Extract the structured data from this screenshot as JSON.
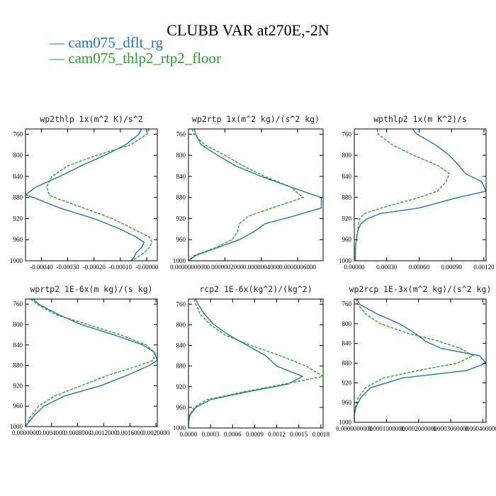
{
  "figure": {
    "title": "CLUBB VAR at270E,-2N",
    "legend": [
      {
        "label": "cam075_dflt_rg",
        "color": "#1f77b4",
        "style": "solid"
      },
      {
        "label": "cam075_thlp2_rtp2_floor",
        "color": "#2ca02c",
        "style": "dashed"
      }
    ]
  },
  "chart_data": [
    {
      "type": "line",
      "title": "wp2thlp  1x(m^2 K)/s^2",
      "ylim": [
        1000,
        750
      ],
      "y_ticks": [
        "760",
        "800",
        "840",
        "880",
        "920",
        "960",
        "1000"
      ],
      "xlim": [
        -0.00046,
        4e-05
      ],
      "x_ticks": [
        -0.0004,
        -0.0003,
        -0.0002,
        -0.0001,
        0.0
      ],
      "x_tick_labels": [
        "-0.00040",
        "-0.00030",
        "-0.00020",
        "-0.00010",
        "-0.00000"
      ],
      "y": [
        750,
        760,
        780,
        800,
        820,
        840,
        860,
        875,
        880,
        900,
        920,
        940,
        955,
        965,
        975,
        985,
        995,
        1000
      ],
      "series": [
        {
          "name": "cam075_dflt_rg",
          "color": "#1f77b4",
          "dash": "",
          "x": [
            -2e-05,
            -3e-05,
            -8e-05,
            -0.00016,
            -0.00025,
            -0.00033,
            -0.00042,
            -0.00046,
            -0.00043,
            -0.00033,
            -0.0002,
            -0.0001,
            -4e-05,
            -1e-05,
            -2e-05,
            -4e-05,
            -5e-05,
            -6e-05
          ]
        },
        {
          "name": "cam075_thlp2_rtp2_floor",
          "color": "#2ca02c",
          "dash": "4,2",
          "x": [
            1e-05,
            0.0,
            -6e-05,
            -0.00019,
            -0.0003,
            -0.00036,
            -0.00038,
            -0.00037,
            -0.00035,
            -0.00024,
            -0.00013,
            -5e-05,
            1e-05,
            2e-05,
            1e-05,
            -1e-05,
            -4e-05,
            -6e-05
          ]
        }
      ]
    },
    {
      "type": "line",
      "title": "wp2rtp  1x(m^2 kg)/(s^2 kg)",
      "ylim": [
        1000,
        750
      ],
      "y_ticks": [
        "760",
        "800",
        "840",
        "880",
        "920",
        "960",
        "1000"
      ],
      "xlim": [
        0.0,
        7.4e-07
      ],
      "x_ticks": [
        0.0,
        2e-07,
        4e-07,
        6e-07
      ],
      "x_tick_labels": [
        "0.0000000000",
        "0.0000002000",
        "0.0000004000",
        "0.0000006000"
      ],
      "y": [
        750,
        760,
        780,
        800,
        820,
        840,
        860,
        880,
        900,
        915,
        930,
        945,
        960,
        975,
        990,
        1000
      ],
      "series": [
        {
          "name": "cam075_dflt_rg",
          "color": "#1f77b4",
          "dash": "",
          "x": [
            3.2e-08,
            4e-08,
            7e-08,
            1.6e-07,
            2.6e-07,
            4e-07,
            5.6e-07,
            7.3e-07,
            7.3e-07,
            5.8e-07,
            4.2e-07,
            3.6e-07,
            2.8e-07,
            1.6e-07,
            4e-08,
            0.0
          ]
        },
        {
          "name": "cam075_thlp2_rtp2_floor",
          "color": "#2ca02c",
          "dash": "4,2",
          "x": [
            2e-08,
            3e-08,
            9e-08,
            2e-07,
            3e-07,
            4.2e-07,
            5.6e-07,
            6.3e-07,
            4.6e-07,
            3.3e-07,
            2.8e-07,
            2.7e-07,
            2.4e-07,
            1.5e-07,
            3e-08,
            0.0
          ]
        }
      ]
    },
    {
      "type": "line",
      "title": "wpthlp2  1x(m K^2)/s",
      "ylim": [
        1000,
        750
      ],
      "y_ticks": [
        "760",
        "800",
        "840",
        "880",
        "920",
        "960",
        "1000"
      ],
      "xlim": [
        0.0,
        0.00122
      ],
      "x_ticks": [
        0.0,
        0.0003,
        0.0006,
        0.0009,
        0.0012
      ],
      "x_tick_labels": [
        "0.00000",
        "0.00030",
        "0.00060",
        "0.00090",
        "0.00120"
      ],
      "y": [
        750,
        760,
        780,
        800,
        820,
        835,
        850,
        868,
        880,
        900,
        910,
        920,
        930,
        945,
        960,
        975,
        990,
        1000
      ],
      "series": [
        {
          "name": "cam075_dflt_rg",
          "color": "#1f77b4",
          "dash": "",
          "x": [
            0.00054,
            0.00058,
            0.00075,
            0.00088,
            0.00097,
            0.00103,
            0.00118,
            0.00122,
            0.00096,
            0.0006,
            0.00025,
            0.00012,
            6e-05,
            3e-05,
            2e-05,
            1e-05,
            1e-05,
            1e-05
          ]
        },
        {
          "name": "cam075_thlp2_rtp2_floor",
          "color": "#2ca02c",
          "dash": "4,2",
          "x": [
            0.00021,
            0.00022,
            0.00035,
            0.00055,
            0.00078,
            0.00088,
            0.00085,
            0.00077,
            0.0006,
            0.00025,
            0.0001,
            5e-05,
            4e-05,
            3e-05,
            2e-05,
            1e-05,
            1e-05,
            1e-05
          ]
        }
      ]
    },
    {
      "type": "line",
      "title": "wprtp2  1E-6x(m kg)/(s kg)",
      "ylim": [
        1000,
        750
      ],
      "y_ticks": [
        "760",
        "800",
        "840",
        "880",
        "920",
        "960",
        "1000"
      ],
      "xlim": [
        0.0,
        0.00202
      ],
      "x_ticks": [
        0.0,
        0.0004,
        0.0008,
        0.0012,
        0.0016,
        0.002
      ],
      "x_tick_labels": [
        "0.0000000",
        "0.0004000",
        "0.0008000",
        "0.0012000",
        "0.0016000",
        "0.0020000"
      ],
      "y": [
        750,
        760,
        780,
        800,
        820,
        840,
        855,
        870,
        880,
        900,
        920,
        940,
        960,
        980,
        1000
      ],
      "series": [
        {
          "name": "cam075_dflt_rg",
          "color": "#1f77b4",
          "dash": "",
          "x": [
            0.00012,
            0.0002,
            0.0005,
            0.00085,
            0.00135,
            0.0018,
            0.00198,
            0.00202,
            0.0019,
            0.00155,
            0.00115,
            0.0006,
            0.00028,
            0.00012,
            0.0
          ]
        },
        {
          "name": "cam075_thlp2_rtp2_floor",
          "color": "#2ca02c",
          "dash": "4,2",
          "x": [
            8e-05,
            0.00018,
            0.00045,
            0.00095,
            0.00145,
            0.00185,
            0.00198,
            0.00196,
            0.00175,
            0.00125,
            0.00085,
            0.00045,
            0.0002,
            8e-05,
            0.0
          ]
        }
      ]
    },
    {
      "type": "line",
      "title": "rcp2  1E-6x(kg^2)/(kg^2)",
      "ylim": [
        1000,
        750
      ],
      "y_ticks": [
        "760",
        "800",
        "840",
        "880",
        "920",
        "960",
        "1000"
      ],
      "xlim": [
        0.0,
        0.00183
      ],
      "x_ticks": [
        0.0,
        0.0003,
        0.0006,
        0.0009,
        0.0012,
        0.0015,
        0.0018
      ],
      "x_tick_labels": [
        "0.0000",
        "0.0003",
        "0.0006",
        "0.0009",
        "0.0012",
        "0.0015",
        "0.0018"
      ],
      "y": [
        750,
        760,
        780,
        800,
        820,
        840,
        860,
        880,
        900,
        915,
        930,
        945,
        960,
        975,
        990,
        1000
      ],
      "series": [
        {
          "name": "cam075_dflt_rg",
          "color": "#1f77b4",
          "dash": "",
          "x": [
            0.0001,
            0.00013,
            0.00022,
            0.00035,
            0.00055,
            0.0008,
            0.00105,
            0.0012,
            0.00155,
            0.00135,
            0.0008,
            0.0003,
            0.0001,
            2e-05,
            0.0,
            0.0
          ]
        },
        {
          "name": "cam075_thlp2_rtp2_floor",
          "color": "#2ca02c",
          "dash": "4,2",
          "x": [
            8e-05,
            0.0001,
            0.00016,
            0.0003,
            0.0005,
            0.00085,
            0.00125,
            0.0016,
            0.00183,
            0.0013,
            0.00075,
            0.00025,
            8e-05,
            1e-05,
            0.0,
            0.0
          ]
        }
      ]
    },
    {
      "type": "line",
      "title": "wp2rcp  1E-3x(m^2 kg)/(s^2 kg)",
      "ylim": [
        1000,
        750
      ],
      "y_ticks": [
        "760",
        "800",
        "840",
        "880",
        "920",
        "960",
        "1000"
      ],
      "xlim": [
        0.0,
        0.00041
      ],
      "x_ticks": [
        0.0,
        0.0001,
        0.0002,
        0.0003,
        0.0004
      ],
      "x_tick_labels": [
        "0.0000000000",
        "0.0001000000",
        "0.0002000000",
        "0.0003000000",
        "0.0004000000"
      ],
      "y": [
        750,
        760,
        780,
        800,
        820,
        835,
        850,
        865,
        880,
        895,
        910,
        930,
        950,
        970,
        985,
        1000
      ],
      "series": [
        {
          "name": "cam075_dflt_rg",
          "color": "#1f77b4",
          "dash": "",
          "x": [
            1e-05,
            1.5e-05,
            7e-05,
            0.00014,
            0.00019,
            0.00022,
            0.00027,
            0.00039,
            0.00041,
            0.00035,
            0.00015,
            5e-05,
            2e-05,
            5e-06,
            0.0,
            0.0
          ]
        },
        {
          "name": "cam075_thlp2_rtp2_floor",
          "color": "#2ca02c",
          "dash": "4,2",
          "x": [
            5e-06,
            1e-05,
            3.5e-05,
            8e-05,
            0.00017,
            0.00026,
            0.00033,
            0.00037,
            0.00032,
            0.0002,
            9e-05,
            3.5e-05,
            1.2e-05,
            3e-06,
            0.0,
            0.0
          ]
        }
      ]
    }
  ]
}
